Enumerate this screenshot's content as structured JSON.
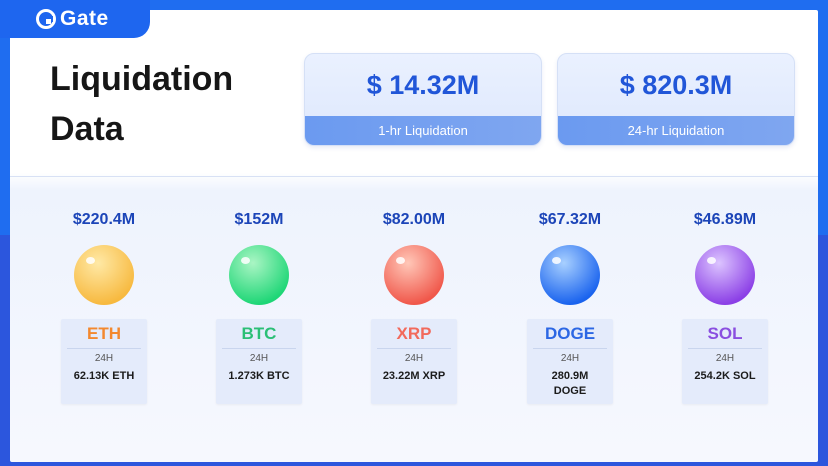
{
  "brand": {
    "name": "Gate"
  },
  "title_line1": "Liquidation",
  "title_line2": "Data",
  "stats": [
    {
      "value": "$ 14.32M",
      "label": "1-hr Liquidation"
    },
    {
      "value": "$ 820.3M",
      "label": "24-hr Liquidation"
    }
  ],
  "coins": [
    {
      "amount": "$220.4M",
      "symbol": "ETH",
      "period": "24H",
      "qty": "62.13K ETH",
      "color": "#f3882e",
      "ball_from": "#ffe9a6",
      "ball_to": "#f7b93f"
    },
    {
      "amount": "$152M",
      "symbol": "BTC",
      "period": "24H",
      "qty": "1.273K BTC",
      "color": "#2bbf76",
      "ball_from": "#aaf5c4",
      "ball_to": "#1ed676"
    },
    {
      "amount": "$82.00M",
      "symbol": "XRP",
      "period": "24H",
      "qty": "23.22M XRP",
      "color": "#f26a5c",
      "ball_from": "#ffc7b8",
      "ball_to": "#f0574a"
    },
    {
      "amount": "$67.32M",
      "symbol": "DOGE",
      "period": "24H",
      "qty": "280.9M DOGE",
      "color": "#2c67e4",
      "ball_from": "#a8d0ff",
      "ball_to": "#1a63ee"
    },
    {
      "amount": "$46.89M",
      "symbol": "SOL",
      "period": "24H",
      "qty": "254.2K SOL",
      "color": "#8a4fe0",
      "ball_from": "#dcc4ff",
      "ball_to": "#8b3fe6"
    }
  ]
}
